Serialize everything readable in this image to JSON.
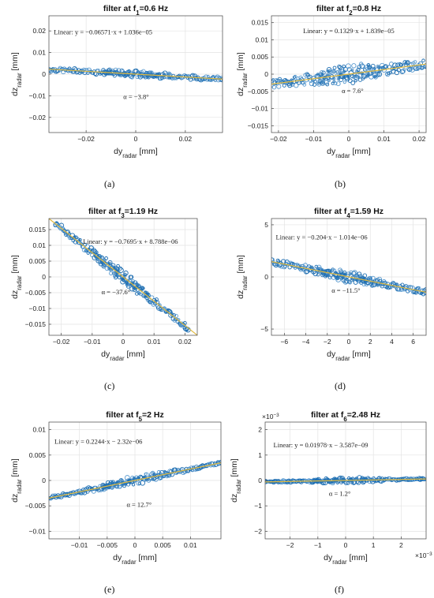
{
  "figure": {
    "panel_labels": [
      "(a)",
      "(b)",
      "(c)",
      "(d)",
      "(e)",
      "(f)"
    ]
  },
  "chart_data": [
    {
      "type": "scatter",
      "title": "filter at f",
      "title_sub": "1",
      "title_tail": "=0.6 Hz",
      "xlabel": "dy",
      "xlabel_sub": "radar",
      "xlabel_unit": " [mm]",
      "ylabel": "dz",
      "ylabel_sub": "radar",
      "ylabel_unit": " [mm]",
      "xlim": [
        -0.035,
        0.035
      ],
      "ylim": [
        -0.027,
        0.027
      ],
      "xticks": [
        -0.02,
        0,
        0.02
      ],
      "xtick_labels": [
        "−0.02",
        "0",
        "0.02"
      ],
      "yticks": [
        -0.02,
        -0.01,
        0,
        0.01,
        0.02
      ],
      "ytick_labels": [
        "−0.02",
        "−0.01",
        "0",
        "0.01",
        "0.02"
      ],
      "exponent_x": "",
      "exponent_y": "",
      "grid": true,
      "fit_label": "Linear: y = −0.06571·x + 1.036e−05",
      "fit_label_pos": [
        -0.033,
        0.0185
      ],
      "alpha_label": "α = −3.8°",
      "alpha_label_pos": [
        -0.005,
        -0.0115
      ],
      "slope": -0.06571,
      "intercept": 1.036e-05,
      "scatter_x_range": [
        -0.035,
        0.035
      ],
      "scatter_thickness": [
        0.0008,
        0.0016
      ]
    },
    {
      "type": "scatter",
      "title": "filter at f",
      "title_sub": "2",
      "title_tail": "=0.8 Hz",
      "xlabel": "dy",
      "xlabel_sub": "radar",
      "xlabel_unit": " [mm]",
      "ylabel": "dz",
      "ylabel_sub": "radar",
      "ylabel_unit": " [mm]",
      "xlim": [
        -0.022,
        0.022
      ],
      "ylim": [
        -0.017,
        0.017
      ],
      "xticks": [
        -0.02,
        -0.01,
        0,
        0.01,
        0.02
      ],
      "xtick_labels": [
        "−0.02",
        "−0.01",
        "0",
        "0.01",
        "0.02"
      ],
      "yticks": [
        -0.015,
        -0.01,
        -0.005,
        0,
        0.005,
        0.01,
        0.015
      ],
      "ytick_labels": [
        "−0.015",
        "−0.01",
        "−0.005",
        "0",
        "0.005",
        "0.01",
        "0.015"
      ],
      "exponent_x": "",
      "exponent_y": "",
      "grid": true,
      "fit_label": "Linear: y = 0.1329·x + 1.839e−05",
      "fit_label_pos": [
        -0.013,
        0.012
      ],
      "alpha_label": "α = 7.6°",
      "alpha_label_pos": [
        -0.002,
        -0.0055
      ],
      "slope": 0.1329,
      "intercept": 1.839e-05,
      "scatter_x_range": [
        -0.022,
        0.022
      ],
      "scatter_thickness": [
        0.0012,
        0.0028
      ]
    },
    {
      "type": "scatter",
      "title": "filter at f",
      "title_sub": "3",
      "title_tail": "=1.19 Hz",
      "xlabel": "dy",
      "xlabel_sub": "radar",
      "xlabel_unit": " [mm]",
      "ylabel": "dz",
      "ylabel_sub": "radar",
      "ylabel_unit": " [mm]",
      "xlim": [
        -0.024,
        0.024
      ],
      "ylim": [
        -0.0185,
        0.0185
      ],
      "xticks": [
        -0.02,
        -0.01,
        0,
        0.01,
        0.02
      ],
      "xtick_labels": [
        "−0.02",
        "−0.01",
        "0",
        "0.01",
        "0.02"
      ],
      "yticks": [
        -0.015,
        -0.01,
        -0.005,
        0,
        0.005,
        0.01,
        0.015
      ],
      "ytick_labels": [
        "−0.015",
        "−0.01",
        "−0.005",
        "0",
        "0.005",
        "0.01",
        "0.015"
      ],
      "exponent_x": "",
      "exponent_y": "",
      "grid": true,
      "fit_label": "Linear: y = −0.7695·x + 8.788e−06",
      "fit_label_pos": [
        -0.013,
        0.0105
      ],
      "alpha_label": "α = −37.6°",
      "alpha_label_pos": [
        -0.007,
        -0.0055
      ],
      "slope": -0.7695,
      "intercept": 8.788e-06,
      "scatter_x_range": [
        -0.022,
        0.021
      ],
      "scatter_thickness": [
        0.0009,
        0.0022
      ]
    },
    {
      "type": "scatter",
      "title": "filter at f",
      "title_sub": "4",
      "title_tail": "=1.59 Hz",
      "xlabel": "dy",
      "xlabel_sub": "radar",
      "xlabel_unit": " [mm]",
      "ylabel": "dz",
      "ylabel_sub": "radar",
      "ylabel_unit": " [mm]",
      "xlim": [
        -7.2,
        7.2
      ],
      "ylim": [
        -5.6,
        5.6
      ],
      "xticks": [
        -6,
        -4,
        -2,
        0,
        2,
        4,
        6
      ],
      "xtick_labels": [
        "−6",
        "−4",
        "−2",
        "0",
        "2",
        "4",
        "6"
      ],
      "yticks": [
        -5,
        0,
        5
      ],
      "ytick_labels": [
        "−5",
        "0",
        "5"
      ],
      "exponent_x": "",
      "exponent_y": "",
      "grid": true,
      "fit_label": "Linear: y = −0.204·x − 1.014e−06",
      "fit_label_pos": [
        -6.8,
        3.6
      ],
      "alpha_label": "α = −11.5°",
      "alpha_label_pos": [
        -1.6,
        -1.5
      ],
      "slope": -0.204,
      "intercept": -1.014e-06,
      "scatter_x_range": [
        -7.2,
        7.2
      ],
      "scatter_thickness": [
        0.25,
        0.55
      ]
    },
    {
      "type": "scatter",
      "title": "filter at f",
      "title_sub": "5",
      "title_tail": "=2 Hz",
      "xlabel": "dy",
      "xlabel_sub": "radar",
      "xlabel_unit": " [mm]",
      "ylabel": "dz",
      "ylabel_sub": "radar",
      "ylabel_unit": " [mm]",
      "xlim": [
        -0.0155,
        0.0155
      ],
      "ylim": [
        -0.0115,
        0.0115
      ],
      "xticks": [
        -0.01,
        -0.005,
        0,
        0.005,
        0.01
      ],
      "xtick_labels": [
        "−0.01",
        "−0.005",
        "0",
        "0.005",
        "0.01"
      ],
      "yticks": [
        -0.01,
        -0.005,
        0,
        0.005,
        0.01
      ],
      "ytick_labels": [
        "−0.01",
        "−0.005",
        "0",
        "0.005",
        "0.01"
      ],
      "exponent_x": "",
      "exponent_y": "",
      "grid": true,
      "fit_label": "Linear: y = 0.2244·x − 2.32e−06",
      "fit_label_pos": [
        -0.0145,
        0.0072
      ],
      "alpha_label": "α = 12.7°",
      "alpha_label_pos": [
        -0.0015,
        -0.0052
      ],
      "slope": 0.2244,
      "intercept": -2.32e-06,
      "scatter_x_range": [
        -0.0155,
        0.0155
      ],
      "scatter_thickness": [
        0.0003,
        0.0009
      ]
    },
    {
      "type": "scatter",
      "title": "filter at f",
      "title_sub": "6",
      "title_tail": "=2.48 Hz",
      "xlabel": "dy",
      "xlabel_sub": "radar",
      "xlabel_unit": " [mm]",
      "ylabel": "dz",
      "ylabel_sub": "radar",
      "ylabel_unit": " [mm]",
      "xlim": [
        -0.0029,
        0.0029
      ],
      "ylim": [
        -0.0023,
        0.0023
      ],
      "xticks": [
        -0.002,
        -0.001,
        0,
        0.001,
        0.002
      ],
      "xtick_labels": [
        "−2",
        "−1",
        "0",
        "1",
        "2"
      ],
      "yticks": [
        -0.002,
        -0.001,
        0,
        0.001,
        0.002
      ],
      "ytick_labels": [
        "−2",
        "−1",
        "0",
        "1",
        "2"
      ],
      "exponent_x": "×10",
      "exponent_x_pow": "−3",
      "exponent_y": "×10",
      "exponent_y_pow": "−3",
      "grid": true,
      "fit_label": "Linear: y = 0.01978·x − 3.587e−09",
      "fit_label_pos": [
        -0.0026,
        0.0013
      ],
      "alpha_label": "α = 1.2°",
      "alpha_label_pos": [
        -0.0006,
        -0.0006
      ],
      "slope": 0.01978,
      "intercept": -3.587e-09,
      "scatter_x_range": [
        -0.0029,
        0.0029
      ],
      "scatter_thickness": [
        2e-05,
        0.00011
      ]
    }
  ]
}
